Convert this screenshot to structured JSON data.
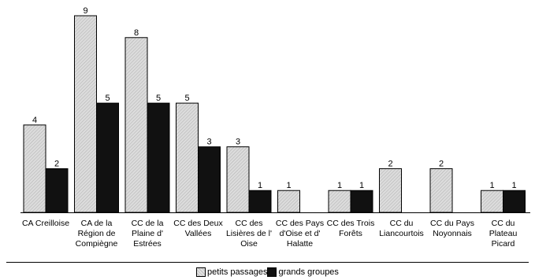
{
  "chart_data": {
    "type": "bar",
    "categories": [
      "CA Creilloise",
      "CA de la Région de Compiègne",
      "CC de la Plaine d' Estrées",
      "CC des Deux Vallées",
      "CC des Lisières de l' Oise",
      "CC des Pays d'Oise et d' Halatte",
      "CC des Trois Forêts",
      "CC du Liancourtois",
      "CC du Pays Noyonnais",
      "CC du Plateau Picard"
    ],
    "category_lines": [
      [
        "CA Creilloise"
      ],
      [
        "CA de la",
        "Région de",
        "Compiègne"
      ],
      [
        "CC de la",
        "Plaine d'",
        "Estrées"
      ],
      [
        "CC des Deux",
        "Vallées"
      ],
      [
        "CC des",
        "Lisières de l'",
        "Oise"
      ],
      [
        "CC des Pays",
        "d'Oise et d'",
        "Halatte"
      ],
      [
        "CC des Trois",
        "Forêts"
      ],
      [
        "CC du",
        "Liancourtois"
      ],
      [
        "CC du Pays",
        "Noyonnais"
      ],
      [
        "CC du",
        "Plateau",
        "Picard"
      ]
    ],
    "series": [
      {
        "name": "petits passages",
        "color": "#c8c8c8",
        "values": [
          4,
          9,
          8,
          5,
          3,
          1,
          1,
          2,
          2,
          1
        ]
      },
      {
        "name": "grands groupes",
        "color": "#111111",
        "values": [
          2,
          5,
          5,
          3,
          1,
          null,
          1,
          null,
          null,
          1
        ]
      }
    ],
    "ylim": [
      0,
      9
    ],
    "grid": false,
    "legend_position": "bottom"
  },
  "legend": {
    "light_label": "petits passages",
    "dark_label": "grands groupes"
  }
}
